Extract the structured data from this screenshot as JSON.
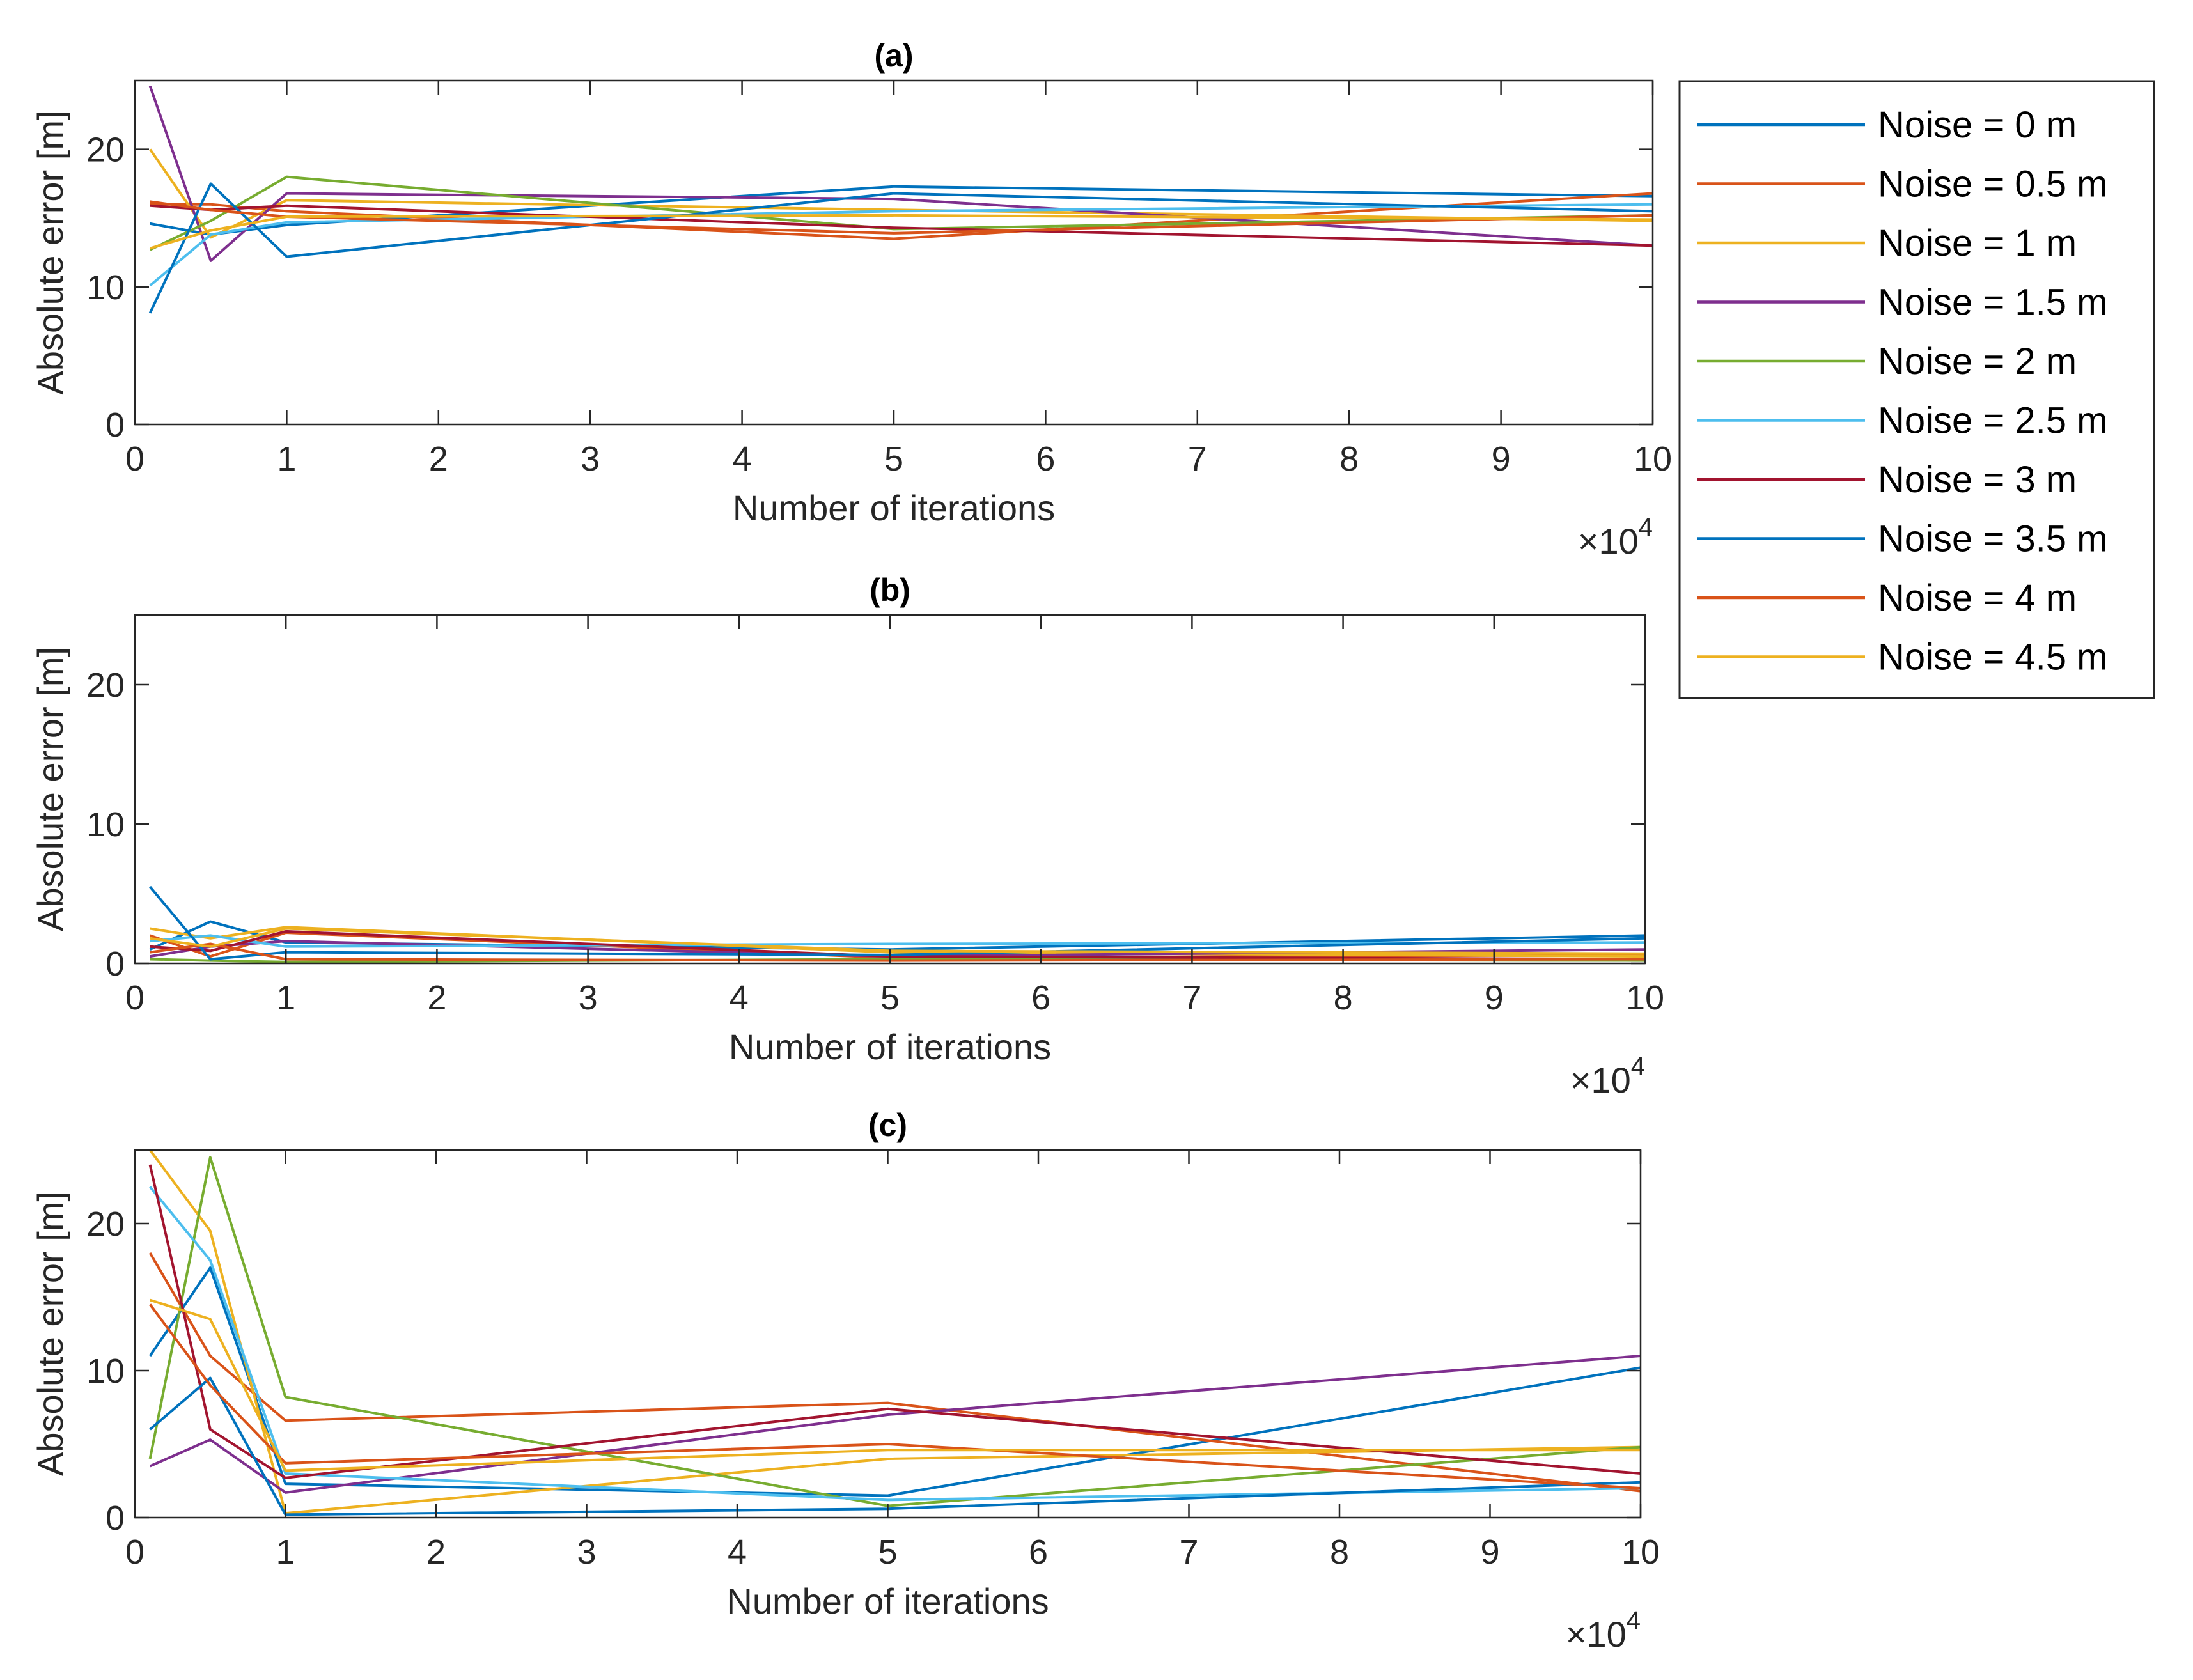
{
  "chart_data": [
    {
      "type": "line",
      "title": "(a)",
      "xlabel": "Number of iterations",
      "ylabel": "Absolute error [m]",
      "x_exponent_label": "×10",
      "x_exponent_power": "4",
      "xlim": [
        0,
        10
      ],
      "ylim": [
        0,
        25
      ],
      "xticks": [
        0,
        1,
        2,
        3,
        4,
        5,
        6,
        7,
        8,
        9,
        10
      ],
      "xtick_labels": [
        "0",
        "1",
        "2",
        "3",
        "4",
        "5",
        "6",
        "7",
        "8",
        "9",
        "10"
      ],
      "yticks": [
        0,
        10,
        20
      ],
      "ytick_labels": [
        "0",
        "10",
        "20"
      ],
      "grid": false,
      "x": [
        0.1,
        0.5,
        1,
        5,
        10
      ],
      "series": [
        {
          "values": [
            14.6,
            13.8,
            14.5,
            17.3,
            16.6
          ]
        },
        {
          "values": [
            16.0,
            16.0,
            15.5,
            13.5,
            16.8
          ]
        },
        {
          "values": [
            20.0,
            13.6,
            16.3,
            15.6,
            14.8
          ]
        },
        {
          "values": [
            24.6,
            11.9,
            16.8,
            16.4,
            13.0
          ]
        },
        {
          "values": [
            12.7,
            14.8,
            18.0,
            14.2,
            15.2
          ]
        },
        {
          "values": [
            10.1,
            13.8,
            14.7,
            15.5,
            16.0
          ]
        },
        {
          "values": [
            15.9,
            15.6,
            15.9,
            14.3,
            13.0
          ]
        },
        {
          "values": [
            8.1,
            17.5,
            12.2,
            16.8,
            15.5
          ]
        },
        {
          "values": [
            16.2,
            15.6,
            15.1,
            13.9,
            15.2
          ]
        },
        {
          "values": [
            12.8,
            14.1,
            15.1,
            15.2,
            14.9
          ]
        }
      ]
    },
    {
      "type": "line",
      "title": "(b)",
      "xlabel": "Number of iterations",
      "ylabel": "Absolute error [m]",
      "x_exponent_label": "×10",
      "x_exponent_power": "4",
      "xlim": [
        0,
        10
      ],
      "ylim": [
        0,
        25
      ],
      "xticks": [
        0,
        1,
        2,
        3,
        4,
        5,
        6,
        7,
        8,
        9,
        10
      ],
      "xtick_labels": [
        "0",
        "1",
        "2",
        "3",
        "4",
        "5",
        "6",
        "7",
        "8",
        "9",
        "10"
      ],
      "yticks": [
        0,
        10,
        20
      ],
      "ytick_labels": [
        "0",
        "10",
        "20"
      ],
      "grid": false,
      "x": [
        0.1,
        0.5,
        1,
        5,
        10
      ],
      "series": [
        {
          "values": [
            1.0,
            3.0,
            1.5,
            1.0,
            2.0
          ]
        },
        {
          "values": [
            2.0,
            0.5,
            2.2,
            0.4,
            0.6
          ]
        },
        {
          "values": [
            2.5,
            1.8,
            2.6,
            0.8,
            0.5
          ]
        },
        {
          "values": [
            0.5,
            1.2,
            1.6,
            0.5,
            1.0
          ]
        },
        {
          "values": [
            0.3,
            0.2,
            0.1,
            0.3,
            0.2
          ]
        },
        {
          "values": [
            1.6,
            2.0,
            1.2,
            1.4,
            1.5
          ]
        },
        {
          "values": [
            1.2,
            0.9,
            2.3,
            0.5,
            0.3
          ]
        },
        {
          "values": [
            5.5,
            0.3,
            0.8,
            0.6,
            1.8
          ]
        },
        {
          "values": [
            0.8,
            1.4,
            0.3,
            0.2,
            0.3
          ]
        },
        {
          "values": [
            1.8,
            1.2,
            2.5,
            0.9,
            0.7
          ]
        }
      ]
    },
    {
      "type": "line",
      "title": "(c)",
      "xlabel": "Number of iterations",
      "ylabel": "Absolute error [m]",
      "x_exponent_label": "×10",
      "x_exponent_power": "4",
      "xlim": [
        0,
        10
      ],
      "ylim": [
        0,
        25
      ],
      "xticks": [
        0,
        1,
        2,
        3,
        4,
        5,
        6,
        7,
        8,
        9,
        10
      ],
      "xtick_labels": [
        "0",
        "1",
        "2",
        "3",
        "4",
        "5",
        "6",
        "7",
        "8",
        "9",
        "10"
      ],
      "yticks": [
        0,
        10,
        20
      ],
      "ytick_labels": [
        "0",
        "10",
        "20"
      ],
      "grid": false,
      "x": [
        0.1,
        0.5,
        1,
        5,
        10
      ],
      "series": [
        {
          "values": [
            11.0,
            17.0,
            2.3,
            1.5,
            10.2
          ]
        },
        {
          "values": [
            18.0,
            11.0,
            6.6,
            7.8,
            1.8
          ]
        },
        {
          "values": [
            25.0,
            19.5,
            0.3,
            4.0,
            4.8
          ]
        },
        {
          "values": [
            3.5,
            5.3,
            1.7,
            7.0,
            11.0
          ]
        },
        {
          "values": [
            4.0,
            24.5,
            8.2,
            0.8,
            4.8
          ]
        },
        {
          "values": [
            22.5,
            17.5,
            3.0,
            1.2,
            2.0
          ]
        },
        {
          "values": [
            24.0,
            6.0,
            2.7,
            7.4,
            3.0
          ]
        },
        {
          "values": [
            6.0,
            9.5,
            0.2,
            0.6,
            2.4
          ]
        },
        {
          "values": [
            14.5,
            9.0,
            3.7,
            5.0,
            2.0
          ]
        },
        {
          "values": [
            14.8,
            13.5,
            3.2,
            4.6,
            4.6
          ]
        }
      ]
    }
  ],
  "legend": {
    "placement": "outside-top-right",
    "entries": [
      {
        "label": "Noise = 0 m",
        "color": "#0072BD"
      },
      {
        "label": "Noise = 0.5 m",
        "color": "#D95319"
      },
      {
        "label": "Noise = 1 m",
        "color": "#EDB120"
      },
      {
        "label": "Noise = 1.5 m",
        "color": "#7E2F8E"
      },
      {
        "label": "Noise = 2 m",
        "color": "#77AC30"
      },
      {
        "label": "Noise = 2.5 m",
        "color": "#4DBEEE"
      },
      {
        "label": "Noise = 3 m",
        "color": "#A2142F"
      },
      {
        "label": "Noise = 3.5 m",
        "color": "#0072BD"
      },
      {
        "label": "Noise = 4 m",
        "color": "#D95319"
      },
      {
        "label": "Noise = 4.5 m",
        "color": "#EDB120"
      }
    ]
  }
}
